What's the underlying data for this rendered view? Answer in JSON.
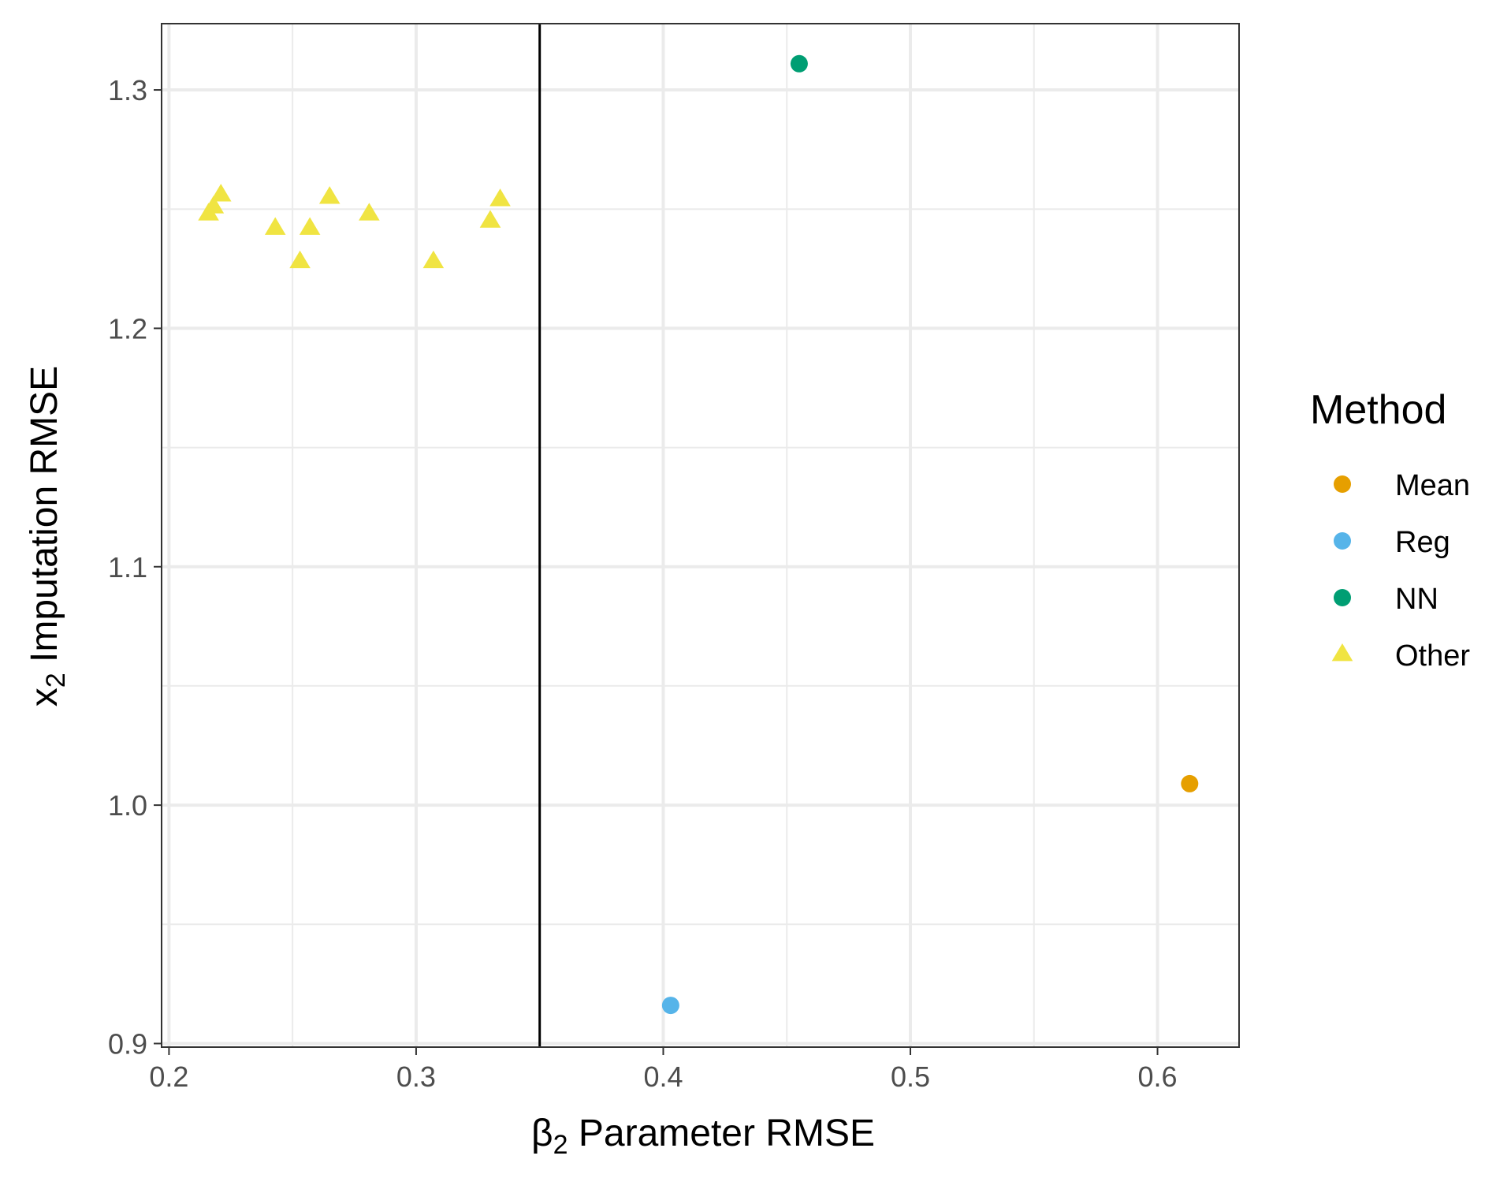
{
  "chart_data": {
    "type": "scatter",
    "title": "",
    "xlabel": {
      "prefix": "β",
      "sub": "2",
      "suffix": " Parameter RMSE"
    },
    "ylabel": {
      "prefix": "x",
      "sub": "2",
      "suffix": " Imputation RMSE"
    },
    "xlim": [
      0.197,
      0.633
    ],
    "ylim": [
      0.8985,
      1.3278
    ],
    "x_ticks": [
      0.2,
      0.3,
      0.4,
      0.5,
      0.6
    ],
    "x_tick_labels": [
      "0.2",
      "0.3",
      "0.4",
      "0.5",
      "0.6"
    ],
    "y_ticks": [
      0.9,
      1.0,
      1.1,
      1.2,
      1.3
    ],
    "y_tick_labels": [
      "0.9",
      "1.0",
      "1.1",
      "1.2",
      "1.3"
    ],
    "grid": true,
    "vertical_reference_line": 0.35,
    "legend": {
      "title": "Method",
      "placement": "right"
    },
    "series": [
      {
        "name": "Mean",
        "color": "#E69F00",
        "shape": "circle",
        "points": [
          [
            0.613,
            1.009
          ]
        ]
      },
      {
        "name": "Reg",
        "color": "#56B4E9",
        "shape": "circle",
        "points": [
          [
            0.403,
            0.916
          ]
        ]
      },
      {
        "name": "NN",
        "color": "#009E73",
        "shape": "circle",
        "points": [
          [
            0.455,
            1.311
          ]
        ]
      },
      {
        "name": "Other",
        "color": "#F0E442",
        "shape": "triangle",
        "points": [
          [
            0.216,
            1.248
          ],
          [
            0.218,
            1.251
          ],
          [
            0.221,
            1.256
          ],
          [
            0.243,
            1.242
          ],
          [
            0.253,
            1.228
          ],
          [
            0.257,
            1.242
          ],
          [
            0.265,
            1.255
          ],
          [
            0.281,
            1.248
          ],
          [
            0.307,
            1.228
          ],
          [
            0.33,
            1.245
          ],
          [
            0.334,
            1.254
          ]
        ]
      }
    ]
  }
}
